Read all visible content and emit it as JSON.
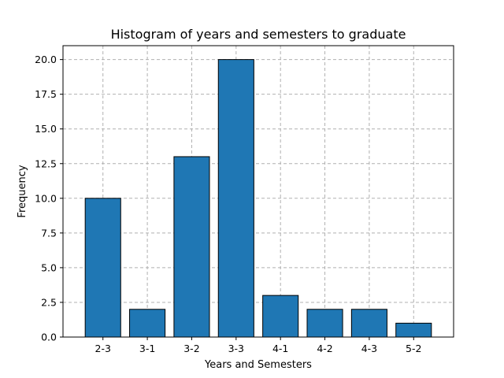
{
  "chart_data": {
    "type": "bar",
    "title": "Histogram of years and semesters to graduate",
    "xlabel": "Years and Semesters",
    "ylabel": "Frequency",
    "categories": [
      "2-3",
      "3-1",
      "3-2",
      "3-3",
      "4-1",
      "4-2",
      "4-3",
      "5-2"
    ],
    "values": [
      10,
      2,
      13,
      20,
      3,
      2,
      2,
      1
    ],
    "ylim": [
      0,
      21
    ],
    "yticks": [
      "0.0",
      "2.5",
      "5.0",
      "7.5",
      "10.0",
      "12.5",
      "15.0",
      "17.5",
      "20.0"
    ],
    "grid": true,
    "bar_color": "#1f77b4",
    "edge_color": "#000000"
  }
}
